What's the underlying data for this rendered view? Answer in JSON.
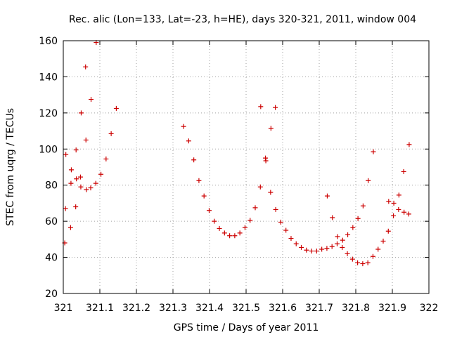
{
  "chart_data": {
    "type": "scatter",
    "title": "Rec. alic (Lon=133, Lat=-23, h=HE), days 320-321, 2011, window 004",
    "xlabel": "GPS time / Days of year 2011",
    "ylabel": "STEC from uqrg / TECUs",
    "xlim": [
      321,
      322
    ],
    "ylim": [
      20,
      160
    ],
    "xticks": [
      "321",
      "321.1",
      "321.2",
      "321.3",
      "321.4",
      "321.5",
      "321.6",
      "321.7",
      "321.8",
      "321.9",
      "322"
    ],
    "yticks": [
      "20",
      "40",
      "60",
      "80",
      "100",
      "120",
      "140",
      "160"
    ],
    "grid": true,
    "marker": "+",
    "color": "#cc0000",
    "points": [
      [
        321.004,
        48
      ],
      [
        321.006,
        67
      ],
      [
        321.007,
        97
      ],
      [
        321.02,
        56.5
      ],
      [
        321.021,
        81
      ],
      [
        321.022,
        88.5
      ],
      [
        321.034,
        68
      ],
      [
        321.035,
        99.5
      ],
      [
        321.036,
        83.5
      ],
      [
        321.047,
        84.5
      ],
      [
        321.048,
        79
      ],
      [
        321.049,
        120
      ],
      [
        321.061,
        145.5
      ],
      [
        321.062,
        105
      ],
      [
        321.063,
        77.5
      ],
      [
        321.075,
        78.5
      ],
      [
        321.076,
        127.5
      ],
      [
        321.089,
        81
      ],
      [
        321.09,
        159
      ],
      [
        321.103,
        86
      ],
      [
        321.117,
        94.5
      ],
      [
        321.131,
        108.5
      ],
      [
        321.145,
        122.5
      ],
      [
        321.329,
        112.5
      ],
      [
        321.343,
        104.5
      ],
      [
        321.357,
        94
      ],
      [
        321.371,
        82.5
      ],
      [
        321.385,
        74
      ],
      [
        321.399,
        66
      ],
      [
        321.413,
        60
      ],
      [
        321.427,
        56
      ],
      [
        321.441,
        53.5
      ],
      [
        321.455,
        52
      ],
      [
        321.469,
        52
      ],
      [
        321.483,
        53.5
      ],
      [
        321.497,
        56.5
      ],
      [
        321.511,
        60.5
      ],
      [
        321.525,
        67.5
      ],
      [
        321.539,
        79
      ],
      [
        321.54,
        123.5
      ],
      [
        321.553,
        95
      ],
      [
        321.554,
        93.5
      ],
      [
        321.567,
        76
      ],
      [
        321.568,
        111.5
      ],
      [
        321.58,
        123
      ],
      [
        321.581,
        66.5
      ],
      [
        321.595,
        59.5
      ],
      [
        321.609,
        55
      ],
      [
        321.623,
        50.5
      ],
      [
        321.637,
        47.5
      ],
      [
        321.651,
        45.5
      ],
      [
        321.665,
        44
      ],
      [
        321.679,
        43.5
      ],
      [
        321.693,
        43.5
      ],
      [
        321.707,
        44.5
      ],
      [
        321.721,
        45
      ],
      [
        321.722,
        74
      ],
      [
        321.735,
        46
      ],
      [
        321.736,
        62
      ],
      [
        321.749,
        47.5
      ],
      [
        321.75,
        51.5
      ],
      [
        321.763,
        45.5
      ],
      [
        321.764,
        49.5
      ],
      [
        321.777,
        42
      ],
      [
        321.778,
        52.5
      ],
      [
        321.791,
        39
      ],
      [
        321.792,
        56.5
      ],
      [
        321.805,
        37
      ],
      [
        321.806,
        61.5
      ],
      [
        321.819,
        36.5
      ],
      [
        321.82,
        68.5
      ],
      [
        321.833,
        37
      ],
      [
        321.834,
        82.5
      ],
      [
        321.847,
        40.5
      ],
      [
        321.848,
        98.5
      ],
      [
        321.861,
        44.5
      ],
      [
        321.875,
        49
      ],
      [
        321.889,
        54.5
      ],
      [
        321.89,
        71
      ],
      [
        321.903,
        63
      ],
      [
        321.904,
        70
      ],
      [
        321.917,
        66.5
      ],
      [
        321.918,
        74.5
      ],
      [
        321.931,
        87.5
      ],
      [
        321.932,
        65
      ],
      [
        321.945,
        64
      ],
      [
        321.946,
        102.5
      ]
    ]
  }
}
